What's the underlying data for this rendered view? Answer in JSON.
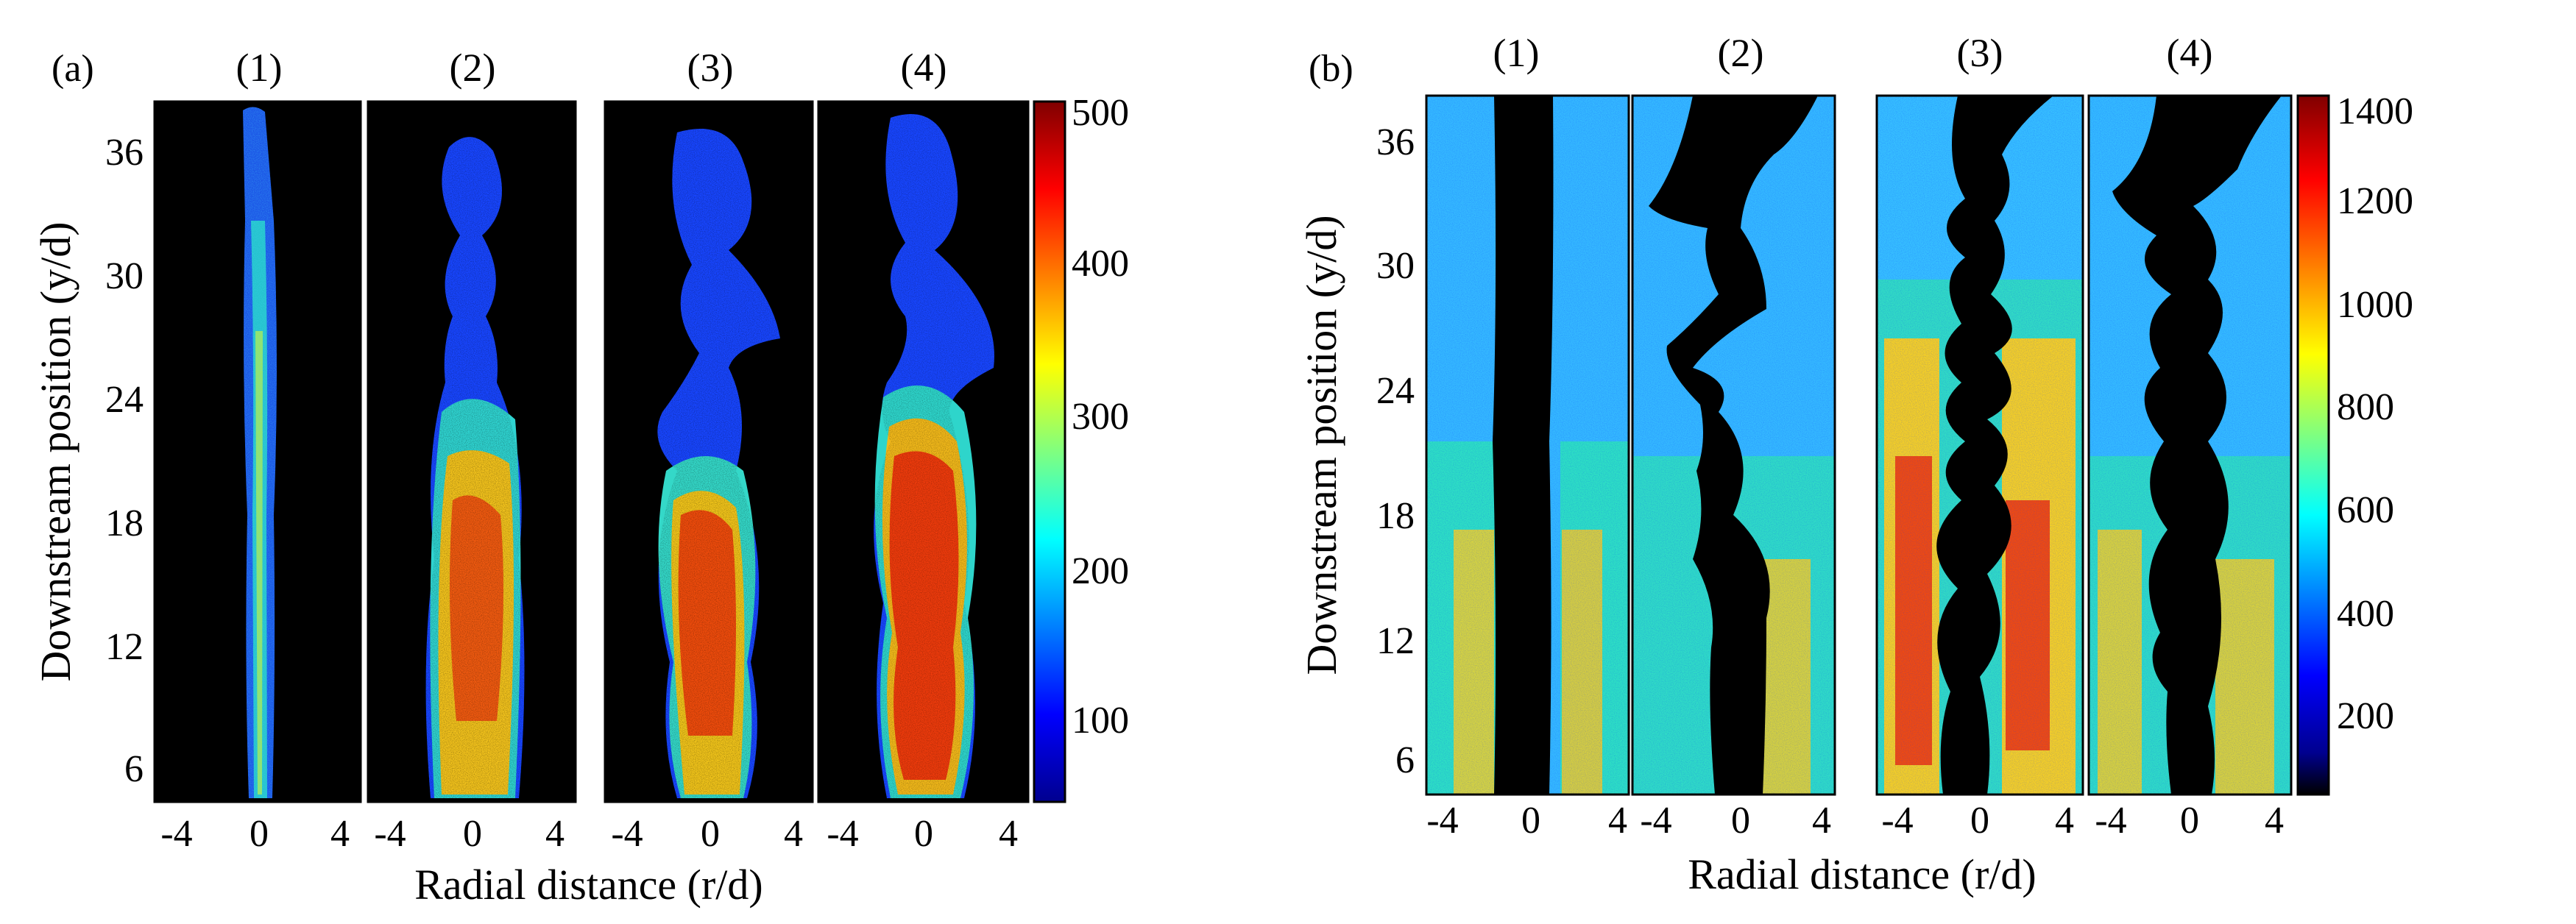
{
  "chart_data": [
    {
      "type": "heatmap",
      "panel_label": "(a)",
      "quantity": "planar scalar intensity (jet fluid)",
      "subpanels": [
        {
          "label": "(1)",
          "feature": "narrow jet core, weak unsteadiness"
        },
        {
          "label": "(2)",
          "feature": "jet widening, vortical puffs above y/d = 24"
        },
        {
          "label": "(3)",
          "feature": "high intensity between y/d = 8 and 20, wavy"
        },
        {
          "label": "(4)",
          "feature": "widest, highest intensity core"
        }
      ],
      "xlabel": "Radial distance (r/d)",
      "ylabel": "Downstream position (y/d)",
      "xticks": [
        "-4",
        "0",
        "4"
      ],
      "yticks": [
        "6",
        "12",
        "18",
        "24",
        "30",
        "36"
      ],
      "xlim": [
        -5,
        5
      ],
      "ylim": [
        4,
        38
      ],
      "colorbar": {
        "ticks": [
          "100",
          "200",
          "300",
          "400",
          "500"
        ],
        "range": [
          50,
          520
        ],
        "colormap": "jet"
      },
      "background_color": "#000000",
      "grid": false
    },
    {
      "type": "heatmap",
      "panel_label": "(b)",
      "quantity": "planar intensity of ambient/coflow fluid; jet appears dark",
      "subpanels": [
        {
          "label": "(1)",
          "feature": "straight dark jet core"
        },
        {
          "label": "(2)",
          "feature": "dark core with large excursions above y/d = 24"
        },
        {
          "label": "(3)",
          "feature": "high coflow intensity, wavy dark core"
        },
        {
          "label": "(4)",
          "feature": "wavy dark core with shed vortices"
        }
      ],
      "xlabel": "Radial distance (r/d)",
      "ylabel": "Downstream position (y/d)",
      "xticks": [
        "-4",
        "0",
        "4"
      ],
      "yticks": [
        "6",
        "12",
        "18",
        "24",
        "30",
        "36"
      ],
      "xlim": [
        -5,
        5
      ],
      "ylim": [
        4,
        38
      ],
      "colorbar": {
        "ticks": [
          "200",
          "400",
          "600",
          "800",
          "1000",
          "1200",
          "1400"
        ],
        "range": [
          40,
          1440
        ],
        "colormap": "jet"
      },
      "grid": false
    }
  ]
}
